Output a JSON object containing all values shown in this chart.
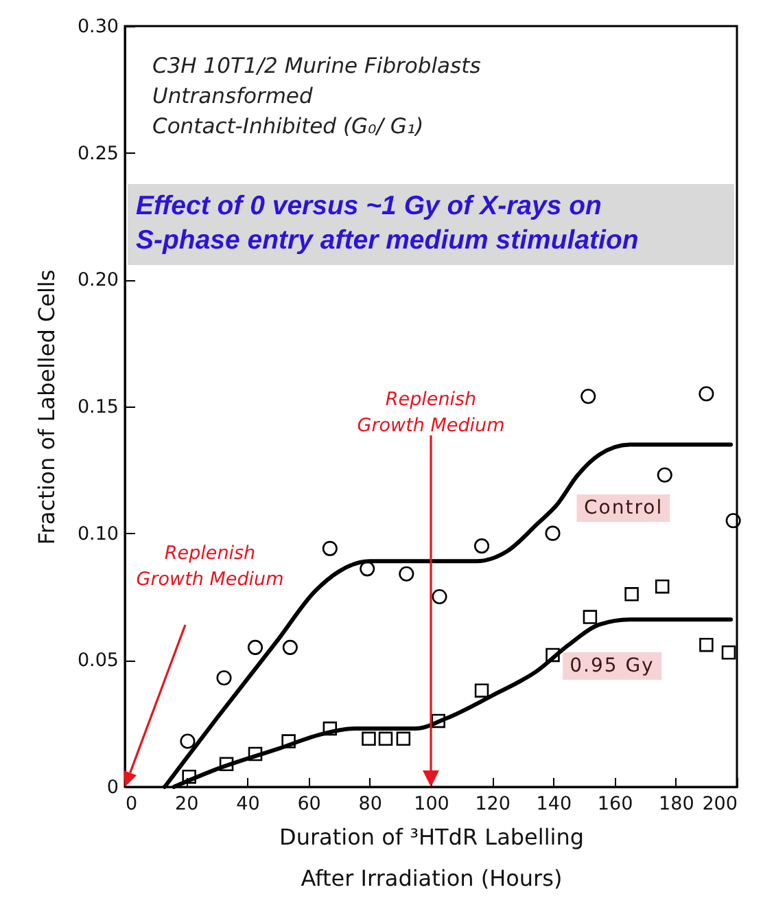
{
  "chart_data": {
    "type": "scatter",
    "title": "Effect of 0 versus ~1 Gy of X-rays on S-phase entry after medium stimulation",
    "subtitle": "C3H 10T1/2 Murine Fibroblasts\nUntransformed\nContact-Inhibited (G₀/ G₁)",
    "xlabel": "Duration of ³HTdR Labelling\nAfter Irradiation  (Hours)",
    "ylabel": "Fraction of Labelled Cells",
    "xlim": [
      0,
      200
    ],
    "xticks": [
      0,
      20,
      40,
      60,
      80,
      100,
      120,
      140,
      160,
      180,
      200
    ],
    "ylim": [
      0,
      0.3
    ],
    "yticks": [
      {
        "value": 0,
        "label": "0"
      },
      0.05,
      {
        "value": 0.1,
        "label": "0.10"
      },
      0.15,
      {
        "value": 0.2,
        "label": "0.20"
      },
      0.25,
      {
        "value": 0.3,
        "label": "0.30"
      }
    ],
    "grid": false,
    "legend": false,
    "series": [
      {
        "name": "Control",
        "marker": "circle",
        "color": "#000000",
        "x": [
          20.5,
          32.4,
          42.6,
          54,
          67,
          79.2,
          92,
          102.8,
          116.6,
          139.8,
          151.4,
          176.4,
          190,
          198.8
        ],
        "values": [
          0.018,
          0.043,
          0.055,
          0.055,
          0.094,
          0.086,
          0.084,
          0.075,
          0.095,
          0.1,
          0.154,
          0.123,
          0.155,
          0.105
        ]
      },
      {
        "name": "0.95 Gy",
        "marker": "square",
        "color": "#000000",
        "x": [
          21,
          33.2,
          42.6,
          53.5,
          67,
          79.7,
          85.2,
          91,
          102.4,
          116.6,
          139.8,
          152,
          165.6,
          175.6,
          190,
          197.3
        ],
        "values": [
          0.004,
          0.009,
          0.013,
          0.018,
          0.023,
          0.019,
          0.019,
          0.019,
          0.026,
          0.038,
          0.052,
          0.067,
          0.076,
          0.079,
          0.056,
          0.053
        ]
      },
      {
        "type": "line",
        "color": "#000000",
        "x": [
          13,
          30,
          50,
          62,
          70,
          80,
          100,
          115,
          125,
          135,
          141,
          148,
          155,
          165,
          198
        ],
        "values": [
          0,
          0.027,
          0.058,
          0.077,
          0.085,
          0.089,
          0.089,
          0.089,
          0.093,
          0.104,
          0.111,
          0.123,
          0.131,
          0.135,
          0.135
        ]
      },
      {
        "type": "line",
        "color": "#000000",
        "x": [
          16,
          30,
          50,
          65,
          75,
          95,
          105,
          120,
          135,
          145,
          155,
          165,
          198
        ],
        "values": [
          0,
          0.007,
          0.015,
          0.021,
          0.023,
          0.023,
          0.027,
          0.036,
          0.046,
          0.056,
          0.064,
          0.066,
          0.066
        ]
      }
    ],
    "annotations": [
      "Replenish\nGrowth Medium"
    ],
    "ref_lines": [
      {
        "axis": "x",
        "value": 100,
        "label": "Replenish\nGrowth Medium",
        "color": "#e8141e"
      }
    ]
  }
}
